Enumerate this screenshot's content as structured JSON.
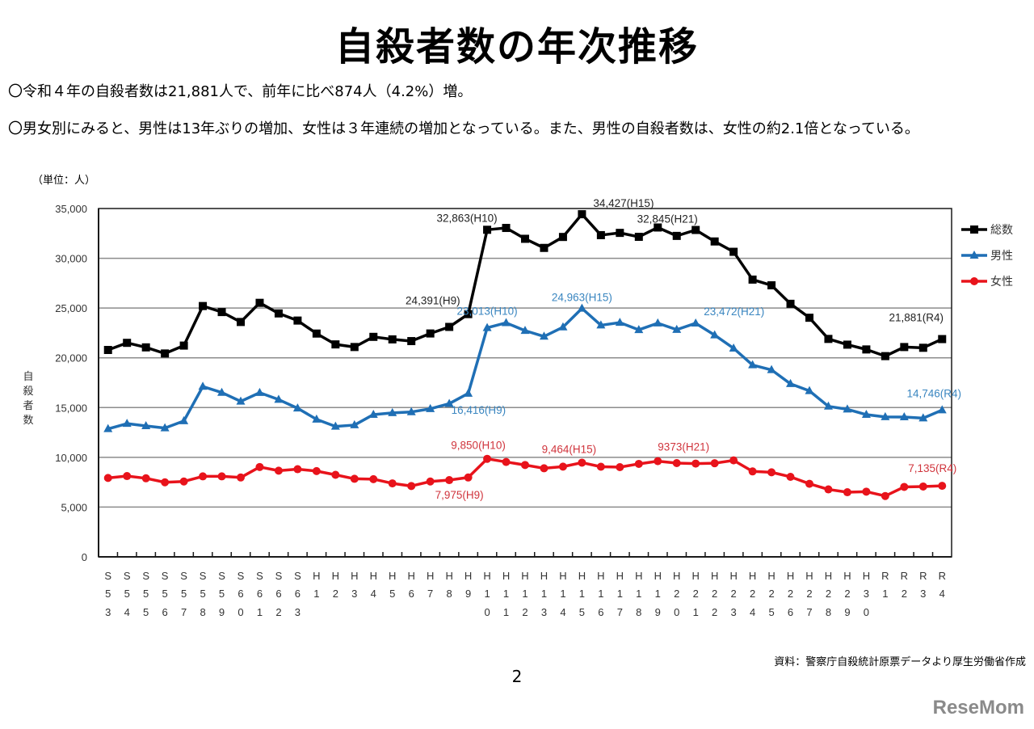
{
  "page": {
    "title": "自殺者数の年次推移",
    "bullets": [
      "〇令和４年の自殺者数は21,881人で、前年に比べ874人（4.2%）増。",
      "〇男女別にみると、男性は13年ぶりの増加、女性は３年連続の増加となっている。また、男性の自殺者数は、女性の約2.1倍となっている。"
    ],
    "unit_label": "（単位：人）",
    "source": "資料：警察庁自殺統計原票データより厚生労働省作成",
    "page_number": "2",
    "watermark": "ReseMom"
  },
  "chart_data": {
    "type": "line",
    "title": "自殺者数の年次推移",
    "xlabel": "",
    "ylabel": "自殺者数",
    "ylim": [
      0,
      35000
    ],
    "yticks": [
      0,
      5000,
      10000,
      15000,
      20000,
      25000,
      30000,
      35000
    ],
    "ytick_labels": [
      "0",
      "5,000",
      "10,000",
      "15,000",
      "20,000",
      "25,000",
      "30,000",
      "35,000"
    ],
    "grid": true,
    "legend_position": "right",
    "categories": [
      "S53",
      "S54",
      "S55",
      "S56",
      "S57",
      "S58",
      "S59",
      "S60",
      "S61",
      "S62",
      "S63",
      "H1",
      "H2",
      "H3",
      "H4",
      "H5",
      "H6",
      "H7",
      "H8",
      "H9",
      "H10",
      "H11",
      "H12",
      "H13",
      "H14",
      "H15",
      "H16",
      "H17",
      "H18",
      "H19",
      "H20",
      "H21",
      "H22",
      "H23",
      "H24",
      "H25",
      "H26",
      "H27",
      "H28",
      "H29",
      "H30",
      "R1",
      "R2",
      "R3",
      "R4"
    ],
    "series": [
      {
        "name": "総数",
        "color": "#000000",
        "marker": "square",
        "values": [
          20788,
          21503,
          21048,
          20434,
          21228,
          25202,
          24596,
          23599,
          25524,
          24460,
          23742,
          22436,
          21346,
          21084,
          22104,
          21851,
          21679,
          22445,
          23104,
          24391,
          32863,
          33048,
          31957,
          31042,
          32143,
          34427,
          32325,
          32552,
          32155,
          33093,
          32249,
          32845,
          31690,
          30651,
          27858,
          27283,
          25427,
          24025,
          21897,
          21321,
          20840,
          20169,
          21081,
          21007,
          21881
        ]
      },
      {
        "name": "男性",
        "color": "#1f6fb5",
        "marker": "triangle",
        "values": [
          12859,
          13386,
          13155,
          12942,
          13654,
          17116,
          16508,
          15624,
          16497,
          15802,
          14934,
          13818,
          13102,
          13242,
          14296,
          14468,
          14560,
          14874,
          15393,
          16416,
          23013,
          23512,
          22727,
          22144,
          23080,
          24963,
          23272,
          23540,
          22813,
          23478,
          22831,
          23472,
          22283,
          20955,
          19273,
          18787,
          17386,
          16681,
          15121,
          14828,
          14290,
          14055,
          14053,
          13939,
          14746
        ]
      },
      {
        "name": "女性",
        "color": "#e8131b",
        "marker": "circle",
        "values": [
          7929,
          8117,
          7893,
          7492,
          7574,
          8086,
          8088,
          7975,
          9027,
          8658,
          8808,
          8618,
          8244,
          7842,
          7808,
          7383,
          7119,
          7571,
          7711,
          7975,
          9850,
          9536,
          9230,
          8898,
          9063,
          9464,
          9053,
          9012,
          9342,
          9615,
          9418,
          9373,
          9407,
          9696,
          8585,
          8496,
          8041,
          7344,
          6776,
          6493,
          6550,
          6114,
          7028,
          7068,
          7135
        ]
      }
    ],
    "annotations": [
      {
        "series": "総数",
        "category": "H9",
        "text": "24,391(H9)",
        "color": "#222222"
      },
      {
        "series": "総数",
        "category": "H10",
        "text": "32,863(H10)",
        "color": "#222222"
      },
      {
        "series": "総数",
        "category": "H15",
        "text": "34,427(H15)",
        "color": "#222222"
      },
      {
        "series": "総数",
        "category": "H21",
        "text": "32,845(H21)",
        "color": "#222222"
      },
      {
        "series": "総数",
        "category": "R4",
        "text": "21,881(R4)",
        "color": "#222222"
      },
      {
        "series": "男性",
        "category": "H9",
        "text": "16,416(H9)",
        "color": "#3a86c0"
      },
      {
        "series": "男性",
        "category": "H10",
        "text": "23,013(H10)",
        "color": "#3a86c0"
      },
      {
        "series": "男性",
        "category": "H15",
        "text": "24,963(H15)",
        "color": "#3a86c0"
      },
      {
        "series": "男性",
        "category": "H21",
        "text": "23,472(H21)",
        "color": "#3a86c0"
      },
      {
        "series": "男性",
        "category": "R4",
        "text": "14,746(R4)",
        "color": "#3a86c0"
      },
      {
        "series": "女性",
        "category": "H9",
        "text": "7,975(H9)",
        "color": "#d0353d"
      },
      {
        "series": "女性",
        "category": "H10",
        "text": "9,850(H10)",
        "color": "#d0353d"
      },
      {
        "series": "女性",
        "category": "H15",
        "text": "9,464(H15)",
        "color": "#d0353d"
      },
      {
        "series": "女性",
        "category": "H21",
        "text": "9373(H21)",
        "color": "#d0353d"
      },
      {
        "series": "女性",
        "category": "R4",
        "text": "7,135(R4)",
        "color": "#d0353d"
      }
    ]
  }
}
